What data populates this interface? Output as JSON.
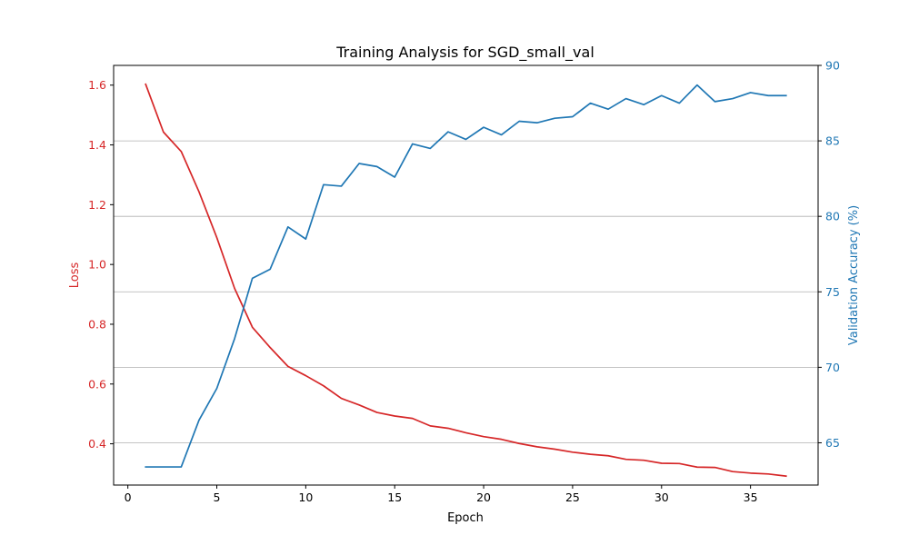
{
  "chart_data": {
    "type": "line",
    "title": "Training Analysis for SGD_small_val",
    "xlabel": "Epoch",
    "ylabel_left": "Loss",
    "ylabel_right": "Validation Accuracy (%)",
    "xlim": [
      -0.8,
      38.8
    ],
    "ylim_left": [
      0.262,
      1.666
    ],
    "ylim_right": [
      62.2,
      90.0
    ],
    "x_ticks": [
      0,
      5,
      10,
      15,
      20,
      25,
      30,
      35
    ],
    "y_ticks_left": [
      0.4,
      0.6,
      0.8,
      1.0,
      1.2,
      1.4,
      1.6
    ],
    "y_ticks_right": [
      65,
      70,
      75,
      80,
      85,
      90
    ],
    "grid": "horizontal lines at right-axis ticks",
    "legend": "none",
    "colors": {
      "loss": "#d62728",
      "accuracy": "#1f77b4",
      "grid": "#b0b0b0",
      "axis": "#000000"
    },
    "x": [
      1,
      2,
      3,
      4,
      5,
      6,
      7,
      8,
      9,
      10,
      11,
      12,
      13,
      14,
      15,
      16,
      17,
      18,
      19,
      20,
      21,
      22,
      23,
      24,
      25,
      26,
      27,
      28,
      29,
      30,
      31,
      32,
      33,
      34,
      35,
      36,
      37
    ],
    "series": [
      {
        "axis": "left",
        "values": [
          1.603,
          1.443,
          1.378,
          1.243,
          1.09,
          0.92,
          0.79,
          0.722,
          0.659,
          0.628,
          0.594,
          0.552,
          0.53,
          0.505,
          0.493,
          0.485,
          0.46,
          0.452,
          0.437,
          0.424,
          0.415,
          0.401,
          0.39,
          0.382,
          0.372,
          0.365,
          0.36,
          0.348,
          0.345,
          0.335,
          0.334,
          0.322,
          0.321,
          0.307,
          0.302,
          0.299,
          0.292
        ]
      },
      {
        "axis": "right",
        "values": [
          63.4,
          63.4,
          63.4,
          66.5,
          68.6,
          71.9,
          75.9,
          76.5,
          79.3,
          78.5,
          82.1,
          82.0,
          83.5,
          83.3,
          82.6,
          84.8,
          84.5,
          85.6,
          85.1,
          85.9,
          85.4,
          86.3,
          86.2,
          86.5,
          86.6,
          87.5,
          87.1,
          87.8,
          87.4,
          88.0,
          87.5,
          88.7,
          87.6,
          87.8,
          88.2,
          88.0,
          88.0
        ]
      }
    ]
  }
}
